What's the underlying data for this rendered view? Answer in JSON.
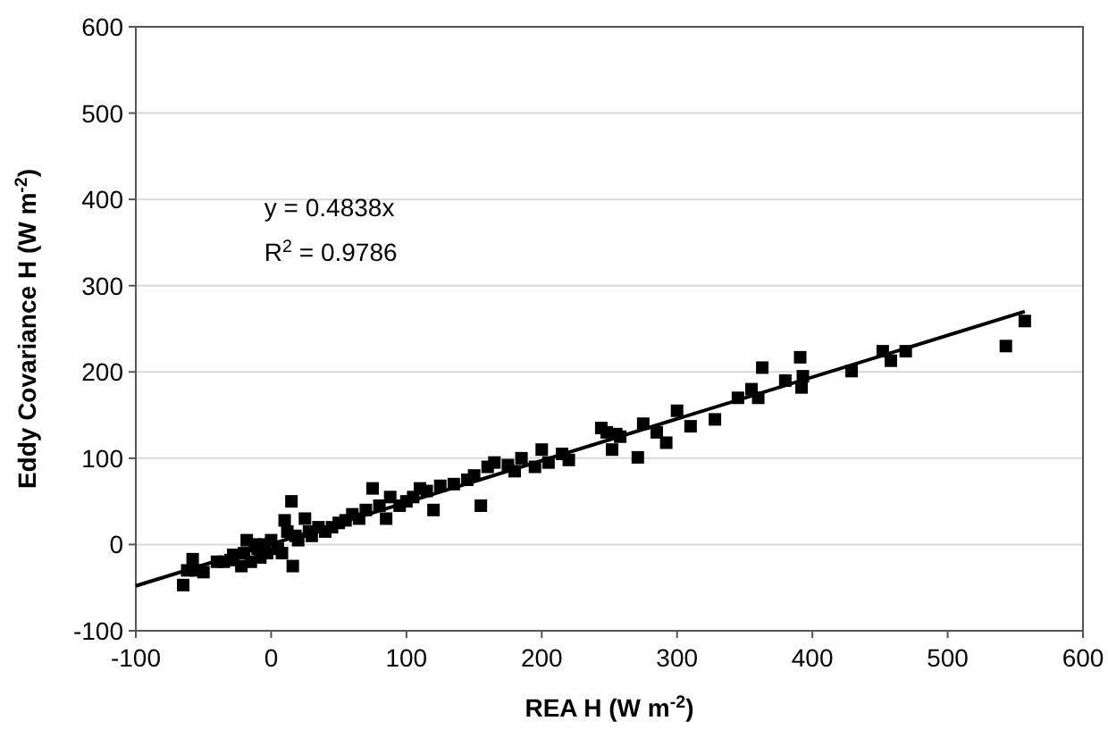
{
  "chart_data": {
    "type": "scatter",
    "xlabel": "REA H (W m$^{-2}$)",
    "ylabel": "Eddy Covariance H (W m$^{-2}$)",
    "xlim": [
      -100,
      600
    ],
    "xticks": [
      -100,
      0,
      100,
      200,
      300,
      400,
      500,
      600
    ],
    "ylim": [
      -100,
      600
    ],
    "yticks": [
      -100,
      0,
      100,
      200,
      300,
      400,
      500,
      600
    ],
    "grid": "y",
    "annotations": [
      "y = 0.4838x",
      "R$^{2}$ = 0.9786"
    ],
    "series": [
      {
        "color": "#000000",
        "marker": "square",
        "x": [
          -65,
          -62,
          -58,
          -55,
          -50,
          -40,
          -35,
          -30,
          -28,
          -22,
          -20,
          -18,
          -15,
          -12,
          -10,
          -8,
          -5,
          -3,
          0,
          5,
          8,
          10,
          12,
          15,
          16,
          18,
          20,
          25,
          28,
          30,
          35,
          40,
          45,
          50,
          55,
          60,
          65,
          70,
          75,
          80,
          85,
          88,
          95,
          100,
          105,
          110,
          115,
          120,
          125,
          135,
          145,
          150,
          155,
          160,
          165,
          175,
          180,
          185,
          195,
          200,
          205,
          215,
          220,
          244,
          248,
          252,
          255,
          258,
          271,
          275,
          285,
          292,
          300,
          310,
          328,
          345,
          355,
          360,
          363,
          380,
          391,
          392,
          393,
          429,
          452,
          458,
          469,
          543,
          557
        ],
        "values": [
          -47,
          -30,
          -17,
          -30,
          -32,
          -20,
          -20,
          -18,
          -12,
          -25,
          -10,
          5,
          -20,
          0,
          -5,
          -15,
          0,
          -10,
          5,
          -5,
          -10,
          28,
          15,
          50,
          -25,
          10,
          5,
          30,
          15,
          10,
          20,
          15,
          20,
          25,
          28,
          35,
          30,
          40,
          65,
          45,
          30,
          55,
          45,
          50,
          55,
          65,
          62,
          40,
          68,
          70,
          75,
          80,
          45,
          90,
          95,
          92,
          85,
          100,
          90,
          110,
          95,
          105,
          98,
          135,
          130,
          110,
          128,
          125,
          101,
          140,
          130,
          118,
          155,
          137,
          145,
          170,
          180,
          170,
          205,
          190,
          217,
          182,
          195,
          201,
          224,
          213,
          224,
          230,
          259
        ]
      },
      {
        "type": "line",
        "color": "#000000",
        "line_style": "solid",
        "x": [
          -100,
          557
        ],
        "values": [
          -48,
          270
        ]
      }
    ]
  }
}
